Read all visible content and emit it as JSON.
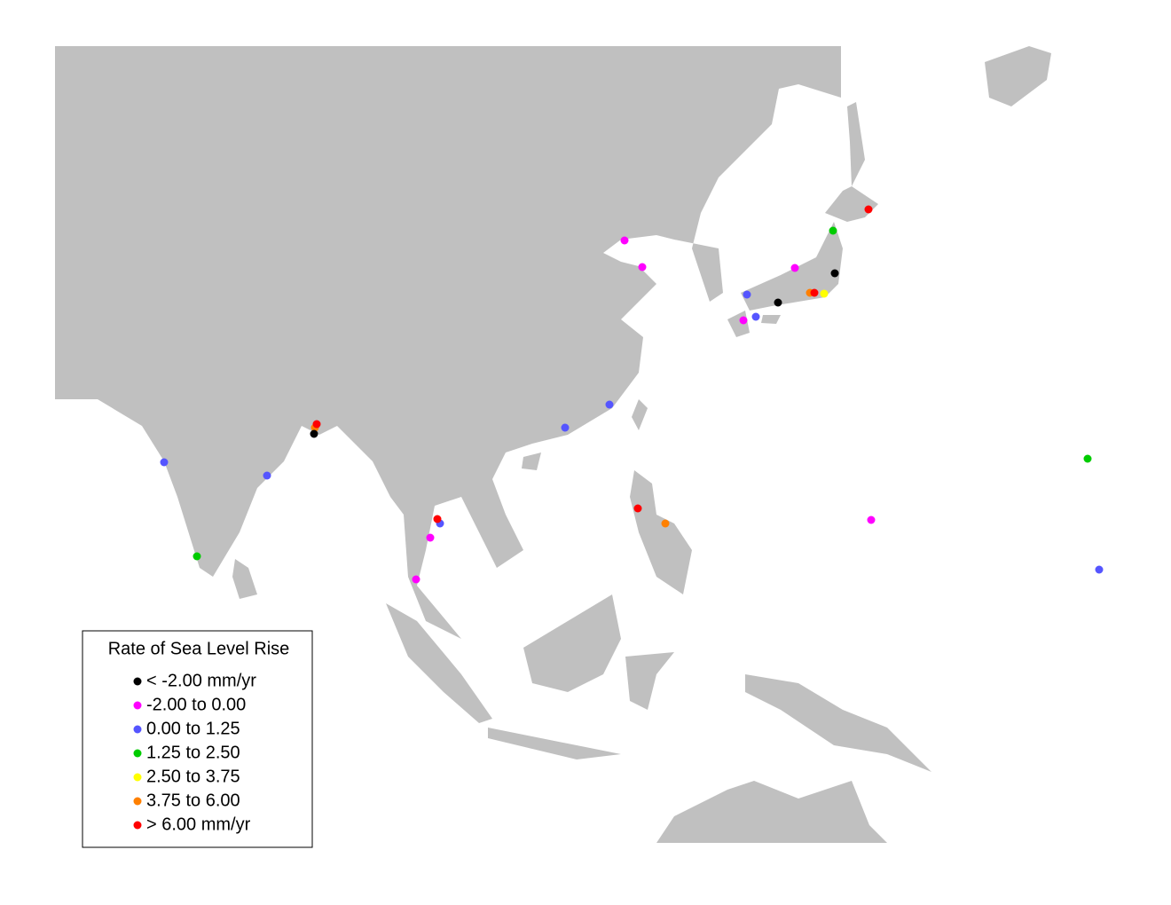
{
  "legend": {
    "title": "Rate of Sea Level Rise",
    "items": [
      {
        "label": "< -2.00 mm/yr",
        "color": "#000000"
      },
      {
        "label": "-2.00 to 0.00",
        "color": "#ff00ff"
      },
      {
        "label": "0.00 to 1.25",
        "color": "#5555ff"
      },
      {
        "label": "1.25 to 2.50",
        "color": "#00cc00"
      },
      {
        "label": "2.50 to 3.75",
        "color": "#ffff00"
      },
      {
        "label": "3.75 to 6.00",
        "color": "#ff8000"
      },
      {
        "label": "> 6.00 mm/yr",
        "color": "#ff0000"
      }
    ]
  }
}
